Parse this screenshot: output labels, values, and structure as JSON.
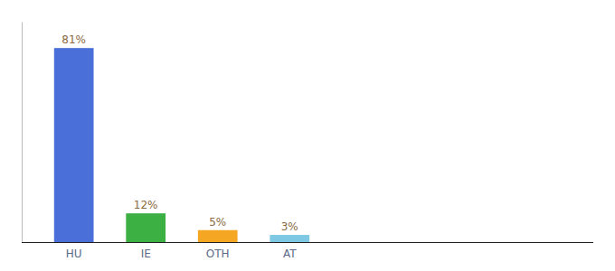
{
  "chart_data": {
    "type": "bar",
    "categories": [
      "HU",
      "IE",
      "OTH",
      "AT"
    ],
    "values": [
      81,
      12,
      5,
      3
    ],
    "value_labels": [
      "81%",
      "12%",
      "5%",
      "3%"
    ],
    "colors": [
      "#4B6FD8",
      "#3CB043",
      "#F5A623",
      "#7EC8E3"
    ],
    "ylim": [
      0,
      92
    ],
    "grid": false,
    "data_labels": true,
    "tick_labels": "x"
  }
}
